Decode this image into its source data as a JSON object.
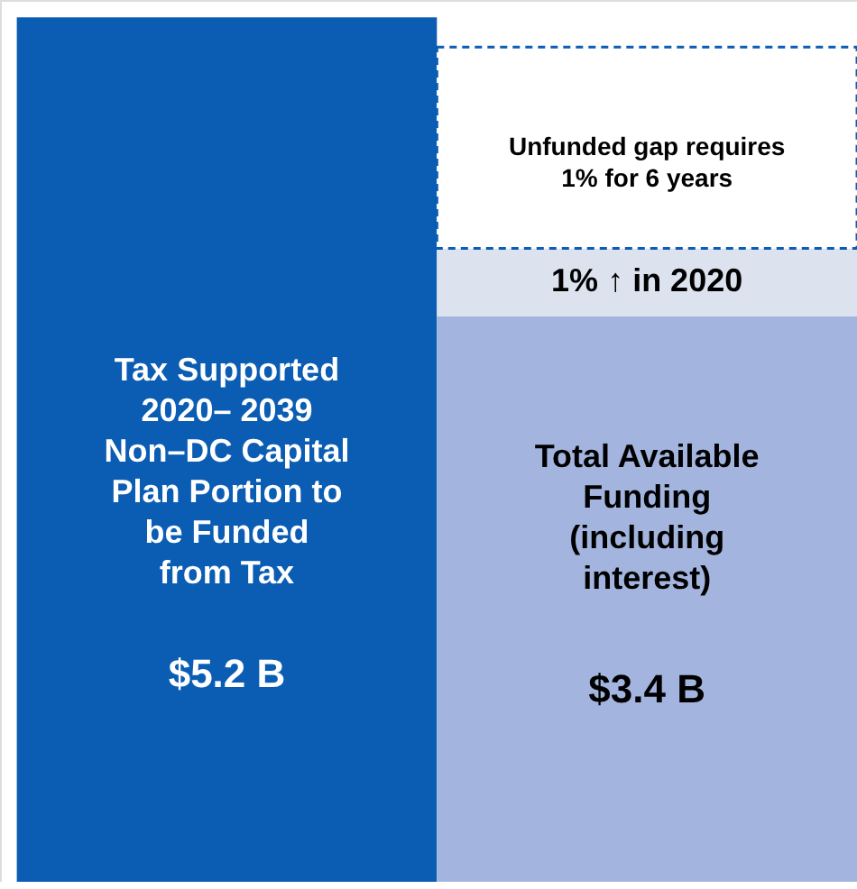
{
  "chart_data": {
    "type": "bar",
    "stacked": true,
    "categories": [
      null,
      null
    ],
    "series": [
      {
        "values": [
          5.2,
          3.4
        ],
        "colors": [
          "#0a5db3",
          "#a3b5df"
        ],
        "value_labels": [
          "$5.2 B",
          "$3.4 B"
        ]
      },
      {
        "values": [
          null,
          0.41
        ],
        "color": "#dce3ef"
      },
      {
        "values": [
          null,
          1.21
        ],
        "color": "#ffffff",
        "line_style": "dashed"
      }
    ],
    "annotations": [
      "Tax Supported\n2020– 2039\nNon–DC Capital\nPlan Portion to\nbe Funded\nfrom Tax",
      "Total Available\nFunding\n(including\ninterest)",
      "1% ↑ in 2020",
      "Unfunded gap requires\n1% for 6 years"
    ]
  }
}
